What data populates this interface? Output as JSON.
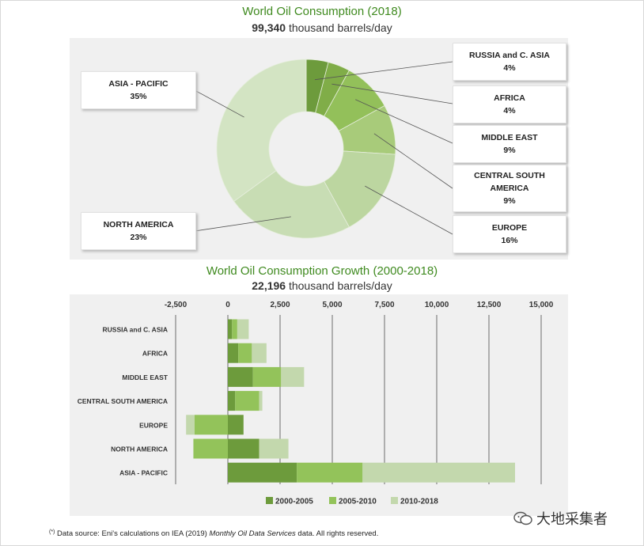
{
  "donut": {
    "title": "World Oil Consumption (2018)",
    "total_value": "99,340",
    "total_unit": "thousand barrels/day"
  },
  "bars": {
    "title": "World Oil Consumption Growth (2000-2018)",
    "total_value": "22,196",
    "total_unit": "thousand barrels/day"
  },
  "footnote": {
    "marker": "(*)",
    "pre": "Data source: Eni's calculations on IEA (2019) ",
    "italic": "Monthly Oil Data Services",
    "post": " data. All rights reserved."
  },
  "watermark": {
    "text": "大地采集者"
  },
  "colors": {
    "dark": "#6d9b3c",
    "mid": "#93c35a",
    "light": "#c3d8ad",
    "title": "#3f8a1f"
  },
  "chart_data": [
    {
      "type": "pie",
      "title": "World Oil Consumption (2018)",
      "subtitle": "99,340 thousand barrels/day",
      "slices": [
        {
          "label_lines": [
            "RUSSIA and C. ASIA"
          ],
          "label": "RUSSIA and C. ASIA",
          "pct_text": "4%",
          "value": 4,
          "color": "#6d9b3c"
        },
        {
          "label_lines": [
            "AFRICA"
          ],
          "label": "AFRICA",
          "pct_text": "4%",
          "value": 4,
          "color": "#80ad48"
        },
        {
          "label_lines": [
            "MIDDLE EAST"
          ],
          "label": "MIDDLE EAST",
          "pct_text": "9%",
          "value": 9,
          "color": "#93c05a"
        },
        {
          "label_lines": [
            "CENTRAL SOUTH",
            "AMERICA"
          ],
          "label": "CENTRAL SOUTH AMERICA",
          "pct_text": "9%",
          "value": 9,
          "color": "#a8cb7a"
        },
        {
          "label_lines": [
            "EUROPE"
          ],
          "label": "EUROPE",
          "pct_text": "16%",
          "value": 16,
          "color": "#bcd6a0"
        },
        {
          "label_lines": [
            "NORTH AMERICA"
          ],
          "label": "NORTH AMERICA",
          "pct_text": "23%",
          "value": 23,
          "color": "#c8ddb4"
        },
        {
          "label_lines": [
            "ASIA - PACIFIC"
          ],
          "label": "ASIA - PACIFIC",
          "pct_text": "35%",
          "value": 35,
          "color": "#d3e4c3"
        }
      ]
    },
    {
      "type": "bar",
      "orientation": "horizontal",
      "stacked": true,
      "title": "World Oil Consumption Growth (2000-2018)",
      "subtitle": "22,196 thousand barrels/day",
      "xlim": [
        -2500,
        15000
      ],
      "xticks": [
        -2500,
        0,
        2500,
        5000,
        7500,
        10000,
        12500,
        15000
      ],
      "xtick_labels": [
        "-2,500",
        "0",
        "2,500",
        "5,000",
        "7,500",
        "10,000",
        "12,500",
        "15,000"
      ],
      "categories": [
        "RUSSIA and C. ASIA",
        "AFRICA",
        "MIDDLE EAST",
        "CENTRAL SOUTH AMERICA",
        "EUROPE",
        "NORTH AMERICA",
        "ASIA - PACIFIC"
      ],
      "series": [
        {
          "name": "2000-2005",
          "color": "#6d9b3c",
          "values": [
            200,
            500,
            1200,
            350,
            750,
            1500,
            3300
          ]
        },
        {
          "name": "2005-2010",
          "color": "#93c35a",
          "values": [
            250,
            650,
            1350,
            1150,
            -1600,
            -1650,
            3150
          ]
        },
        {
          "name": "2010-2018",
          "color": "#c3d8ad",
          "values": [
            550,
            700,
            1100,
            150,
            -400,
            1400,
            7300
          ]
        }
      ],
      "legend_position": "bottom"
    }
  ]
}
